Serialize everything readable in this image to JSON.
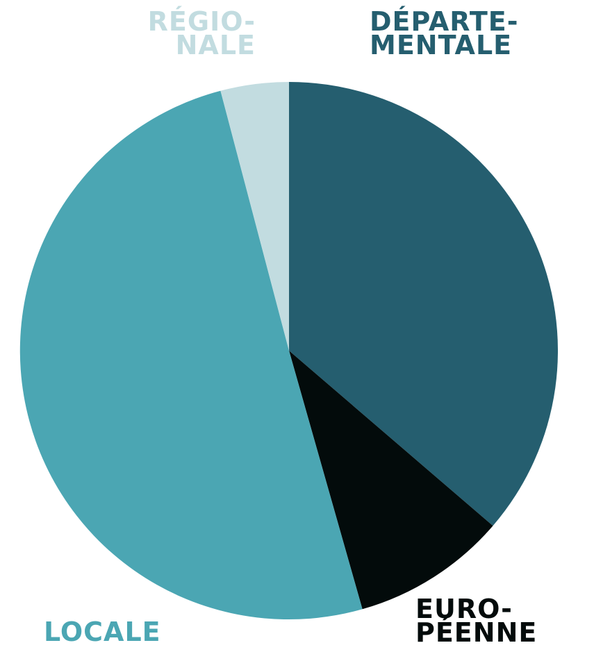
{
  "chart_data": {
    "type": "pie",
    "title": "",
    "start_angle_deg": 0,
    "direction": "clockwise",
    "slices": [
      {
        "label_lines": [
          "DÉPARTE-",
          "MENTALE"
        ],
        "value": 36.3,
        "color": "#255e6f"
      },
      {
        "label_lines": [
          "EURO-",
          "PÉENNE"
        ],
        "value": 9.3,
        "color": "#030b0b"
      },
      {
        "label_lines": [
          "LOCALE"
        ],
        "value": 50.3,
        "color": "#4ba6b3"
      },
      {
        "label_lines": [
          "RÉGIO-",
          "NALE"
        ],
        "value": 4.1,
        "color": "#c2dce0"
      }
    ]
  }
}
